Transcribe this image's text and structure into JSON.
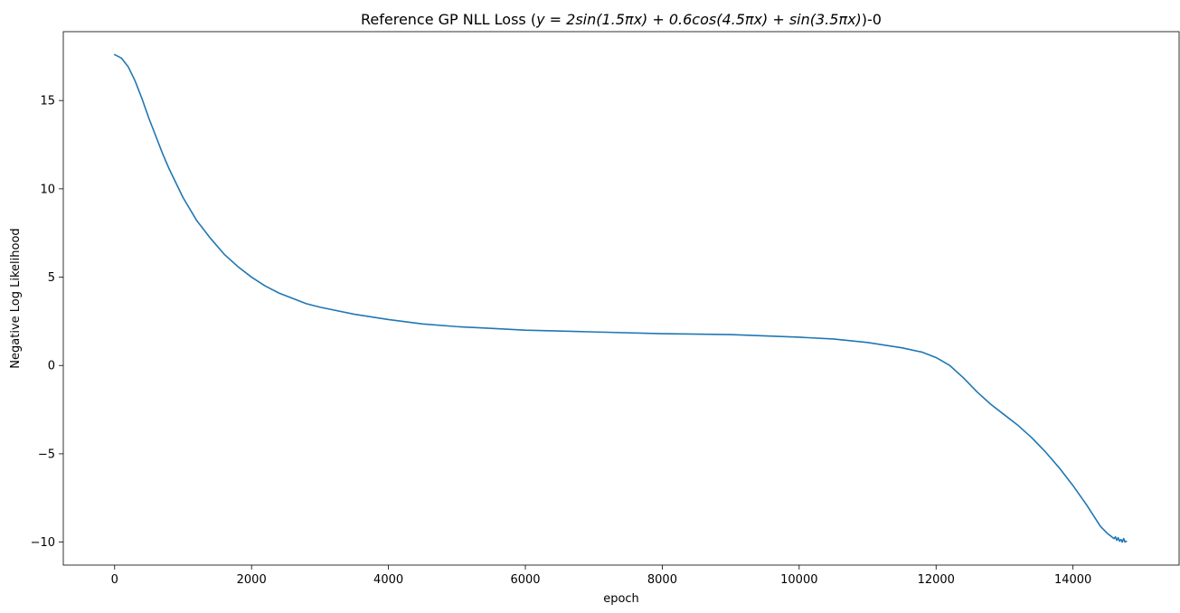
{
  "chart_data": {
    "type": "line",
    "title": "Reference GP NLL Loss (y = 2sin(1.5πx) + 0.6cos(4.5πx) + sin(3.5πx))-0",
    "title_prefix": "Reference GP NLL Loss (",
    "title_math": "y = 2sin(1.5πx) + 0.6cos(4.5πx) + sin(3.5πx)",
    "title_suffix": ")-0",
    "xlabel": "epoch",
    "ylabel": "Negative Log Likelihood",
    "xlim": [
      -750,
      15550
    ],
    "ylim": [
      -11.3,
      18.9
    ],
    "xticks": [
      0,
      2000,
      4000,
      6000,
      8000,
      10000,
      12000,
      14000
    ],
    "yticks": [
      -10,
      -5,
      0,
      5,
      10,
      15
    ],
    "xtick_labels": [
      "0",
      "2000",
      "4000",
      "6000",
      "8000",
      "10000",
      "12000",
      "14000"
    ],
    "ytick_labels": [
      "−10",
      "−5",
      "0",
      "5",
      "10",
      "15"
    ],
    "grid": false,
    "legend": "none",
    "series": [
      {
        "color": "#1f77b4",
        "x": [
          0,
          100,
          200,
          300,
          400,
          500,
          600,
          700,
          800,
          900,
          1000,
          1200,
          1400,
          1600,
          1800,
          2000,
          2200,
          2400,
          2600,
          2800,
          3000,
          3500,
          4000,
          4500,
          5000,
          5500,
          6000,
          7000,
          8000,
          9000,
          10000,
          10500,
          11000,
          11500,
          11800,
          12000,
          12200,
          12400,
          12600,
          12800,
          13000,
          13200,
          13400,
          13600,
          13800,
          14000,
          14200,
          14300,
          14400,
          14500,
          14550,
          14600,
          14620,
          14640,
          14660,
          14680,
          14700,
          14720,
          14740,
          14760,
          14780
        ],
        "y": [
          17.6,
          17.4,
          16.9,
          16.1,
          15.1,
          14.0,
          13.0,
          12.0,
          11.1,
          10.3,
          9.5,
          8.2,
          7.2,
          6.3,
          5.6,
          5.0,
          4.5,
          4.1,
          3.8,
          3.5,
          3.3,
          2.9,
          2.6,
          2.35,
          2.2,
          2.1,
          2.0,
          1.9,
          1.8,
          1.75,
          1.6,
          1.5,
          1.3,
          1.0,
          0.75,
          0.45,
          0.0,
          -0.7,
          -1.5,
          -2.2,
          -2.8,
          -3.4,
          -4.1,
          -4.9,
          -5.8,
          -6.8,
          -7.9,
          -8.5,
          -9.1,
          -9.5,
          -9.65,
          -9.8,
          -9.7,
          -9.9,
          -9.75,
          -9.95,
          -9.85,
          -10.0,
          -9.8,
          -10.0,
          -9.95
        ]
      }
    ]
  }
}
